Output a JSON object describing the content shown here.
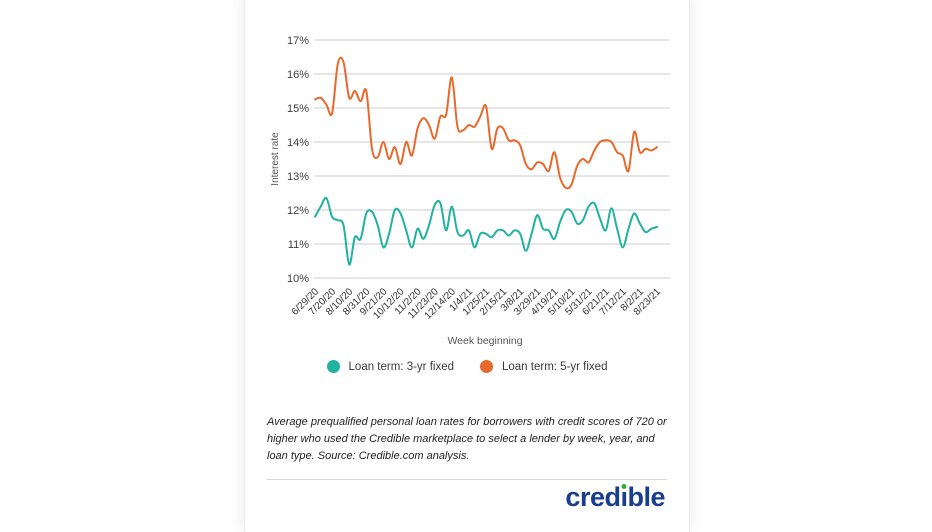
{
  "chart_data": {
    "type": "line",
    "title": "",
    "xlabel": "Week beginning",
    "ylabel": "Interest rate",
    "ylim": [
      10,
      17
    ],
    "y_tick_labels": [
      "17%",
      "16%",
      "15%",
      "14%",
      "13%",
      "12%",
      "11%",
      "10%"
    ],
    "x_tick_labels": [
      "6/29/20",
      "7/20/20",
      "8/10/20",
      "8/31/20",
      "9/21/20",
      "10/12/20",
      "11/2/20",
      "11/23/20",
      "12/14/20",
      "1/4/21",
      "1/25/21",
      "2/15/21",
      "3/8/21",
      "3/29/21",
      "4/19/21",
      "5/10/21",
      "5/31/21",
      "6/21/21",
      "7/12/21",
      "8/2/21",
      "8/23/21"
    ],
    "x_start": "6/29/20",
    "x_end": "8/23/21",
    "x_step": "1 week",
    "points_per_series": 61,
    "grid": "horizontal",
    "legend_position": "bottom",
    "grid_color": "#cccccc",
    "tick_label_color": "#3d3d3d",
    "axis_title_color": "#555555",
    "series": [
      {
        "name": "Loan term: 3-yr fixed",
        "color": "#20B2A1",
        "values": [
          11.8,
          12.1,
          12.35,
          11.8,
          11.7,
          11.55,
          10.4,
          11.2,
          11.15,
          11.9,
          11.95,
          11.55,
          10.9,
          11.3,
          12.0,
          11.9,
          11.4,
          10.9,
          11.45,
          11.15,
          11.55,
          12.15,
          12.2,
          11.4,
          12.1,
          11.35,
          11.25,
          11.4,
          10.9,
          11.3,
          11.3,
          11.2,
          11.4,
          11.4,
          11.25,
          11.4,
          11.3,
          10.8,
          11.3,
          11.85,
          11.45,
          11.4,
          11.15,
          11.65,
          12.0,
          11.95,
          11.6,
          11.7,
          12.1,
          12.2,
          11.75,
          11.4,
          12.05,
          11.45,
          10.9,
          11.45,
          11.9,
          11.6,
          11.35,
          11.45,
          11.5
        ]
      },
      {
        "name": "Loan term: 5-yr fixed",
        "color": "#E8692C",
        "values": [
          15.25,
          15.3,
          15.1,
          14.85,
          16.3,
          16.35,
          15.3,
          15.5,
          15.2,
          15.5,
          13.8,
          13.55,
          14.0,
          13.5,
          13.85,
          13.35,
          14.0,
          13.6,
          14.4,
          14.7,
          14.5,
          14.1,
          14.75,
          14.8,
          15.9,
          14.45,
          14.35,
          14.5,
          14.45,
          14.75,
          15.05,
          13.8,
          14.4,
          14.4,
          14.05,
          14.05,
          13.9,
          13.35,
          13.2,
          13.4,
          13.35,
          13.15,
          13.7,
          12.95,
          12.65,
          12.75,
          13.3,
          13.5,
          13.4,
          13.75,
          14.0,
          14.05,
          14.0,
          13.7,
          13.6,
          13.15,
          14.3,
          13.7,
          13.8,
          13.75,
          13.85
        ]
      }
    ]
  },
  "caption": {
    "text": "Average prequalified personal loan rates for borrowers with credit scores of 720 or higher who used the Credible marketplace to select a lender by week, year, and loan type. Source: Credible.com analysis."
  },
  "logo": {
    "part1": "cred",
    "i_char": "ı",
    "part2": "ble",
    "text_color": "#1A3E8F",
    "dot_color": "#37A94C"
  }
}
